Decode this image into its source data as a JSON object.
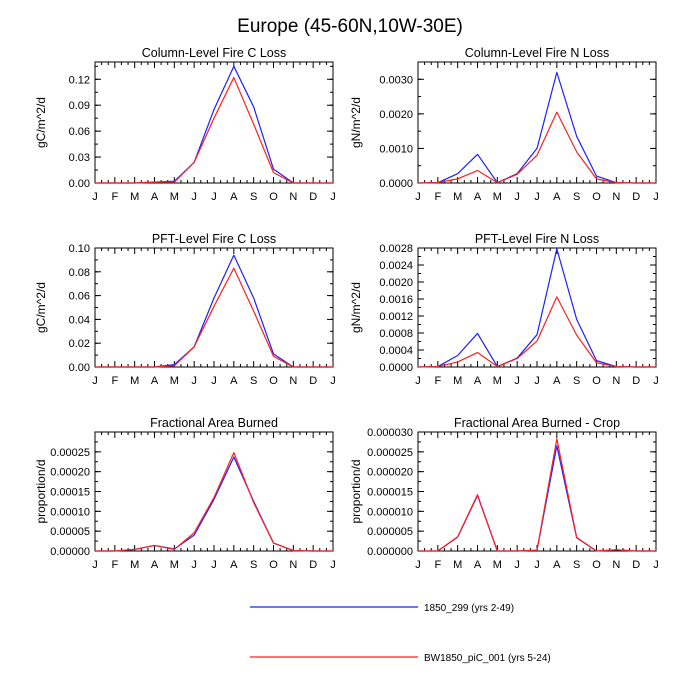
{
  "figure_title": "Europe (45-60N,10W-30E)",
  "colors": {
    "series_1": "#1f1fff",
    "series_2": "#ff1f1f"
  },
  "legend": [
    {
      "label": "1850_299 (yrs 2-49)",
      "color": "#1f1fff"
    },
    {
      "label": "BW1850_piC_001 (yrs 5-24)",
      "color": "#ff1f1f"
    }
  ],
  "chart_data": [
    {
      "type": "line",
      "title": "Column-Level Fire C Loss",
      "ylabel": "gC/m^2/d",
      "xlabel": "",
      "categories": [
        "J",
        "F",
        "M",
        "A",
        "M",
        "J",
        "J",
        "A",
        "S",
        "O",
        "N",
        "D",
        "J"
      ],
      "ylim": [
        0,
        0.14
      ],
      "yticks": [
        0,
        0.03,
        0.06,
        0.09,
        0.12
      ],
      "ytick_labels": [
        "0.00",
        "0.03",
        "0.06",
        "0.09",
        "0.12"
      ],
      "series": [
        {
          "name": "1850_299 (yrs 2-49)",
          "values": [
            0,
            0,
            0,
            0.001,
            0.002,
            0.024,
            0.085,
            0.135,
            0.088,
            0.016,
            0,
            0,
            0
          ]
        },
        {
          "name": "BW1850_piC_001 (yrs 5-24)",
          "values": [
            0,
            0,
            0,
            0.001,
            0.001,
            0.024,
            0.075,
            0.122,
            0.068,
            0.012,
            0,
            0,
            0
          ]
        }
      ]
    },
    {
      "type": "line",
      "title": "Column-Level Fire N Loss",
      "ylabel": "gN/m^2/d",
      "xlabel": "",
      "categories": [
        "J",
        "F",
        "M",
        "A",
        "M",
        "J",
        "J",
        "A",
        "S",
        "O",
        "N",
        "D",
        "J"
      ],
      "ylim": [
        0,
        0.0035
      ],
      "yticks": [
        0,
        0.001,
        0.002,
        0.003
      ],
      "ytick_labels": [
        "0.0000",
        "0.0010",
        "0.0020",
        "0.0030"
      ],
      "series": [
        {
          "name": "1850_299 (yrs 2-49)",
          "values": [
            0,
            1e-05,
            0.00027,
            0.00083,
            1e-05,
            0.00027,
            0.001,
            0.0032,
            0.00135,
            0.0002,
            1e-05,
            0,
            0
          ]
        },
        {
          "name": "BW1850_piC_001 (yrs 5-24)",
          "values": [
            0,
            1e-05,
            0.00012,
            0.00036,
            1e-05,
            0.00025,
            0.0008,
            0.00205,
            0.0009,
            0.00012,
            1e-05,
            0,
            0
          ]
        }
      ]
    },
    {
      "type": "line",
      "title": "PFT-Level Fire C Loss",
      "ylabel": "gC/m^2/d",
      "xlabel": "",
      "categories": [
        "J",
        "F",
        "M",
        "A",
        "M",
        "J",
        "J",
        "A",
        "S",
        "O",
        "N",
        "D",
        "J"
      ],
      "ylim": [
        0,
        0.1
      ],
      "yticks": [
        0,
        0.02,
        0.04,
        0.06,
        0.08,
        0.1
      ],
      "ytick_labels": [
        "0.00",
        "0.02",
        "0.04",
        "0.06",
        "0.08",
        "0.10"
      ],
      "series": [
        {
          "name": "1850_299 (yrs 2-49)",
          "values": [
            0,
            0,
            0,
            0,
            0.002,
            0.017,
            0.058,
            0.094,
            0.058,
            0.011,
            0,
            0,
            0
          ]
        },
        {
          "name": "BW1850_piC_001 (yrs 5-24)",
          "values": [
            0,
            0,
            0,
            0,
            0.001,
            0.017,
            0.051,
            0.083,
            0.047,
            0.009,
            0,
            0,
            0
          ]
        }
      ]
    },
    {
      "type": "line",
      "title": "PFT-Level Fire N Loss",
      "ylabel": "gN/m^2/d",
      "xlabel": "",
      "categories": [
        "J",
        "F",
        "M",
        "A",
        "M",
        "J",
        "J",
        "A",
        "S",
        "O",
        "N",
        "D",
        "J"
      ],
      "ylim": [
        0,
        0.0028
      ],
      "yticks": [
        0,
        0.0004,
        0.0008,
        0.0012,
        0.0016,
        0.002,
        0.0024,
        0.0028
      ],
      "ytick_labels": [
        "0.0000",
        "0.0004",
        "0.0008",
        "0.0012",
        "0.0016",
        "0.0020",
        "0.0024",
        "0.0028"
      ],
      "series": [
        {
          "name": "1850_299 (yrs 2-49)",
          "values": [
            0,
            1e-05,
            0.00027,
            0.00079,
            1e-05,
            0.00021,
            0.00076,
            0.00278,
            0.00112,
            0.00015,
            1e-05,
            0,
            0
          ]
        },
        {
          "name": "BW1850_piC_001 (yrs 5-24)",
          "values": [
            0,
            1e-05,
            0.00012,
            0.00034,
            1e-05,
            0.0002,
            0.00061,
            0.00165,
            0.00075,
            0.0001,
            1e-05,
            0,
            0
          ]
        }
      ]
    },
    {
      "type": "line",
      "title": "Fractional Area Burned",
      "ylabel": "proportion/d",
      "xlabel": "",
      "categories": [
        "J",
        "F",
        "M",
        "A",
        "M",
        "J",
        "J",
        "A",
        "S",
        "O",
        "N",
        "D",
        "J"
      ],
      "ylim": [
        0,
        0.0003
      ],
      "yticks": [
        0,
        5e-05,
        0.0001,
        0.00015,
        0.0002,
        0.00025
      ],
      "ytick_labels": [
        "0.00000",
        "0.00005",
        "0.00010",
        "0.00015",
        "0.00020",
        "0.00025"
      ],
      "series": [
        {
          "name": "1850_299 (yrs 2-49)",
          "values": [
            0,
            0,
            4e-06,
            1.4e-05,
            5e-06,
            4e-05,
            0.00013,
            0.000237,
            0.000125,
            2e-05,
            1e-06,
            0,
            0
          ]
        },
        {
          "name": "BW1850_piC_001 (yrs 5-24)",
          "values": [
            0,
            0,
            4e-06,
            1.4e-05,
            4e-06,
            4.6e-05,
            0.000135,
            0.000248,
            0.000122,
            2e-05,
            1e-06,
            0,
            0
          ]
        }
      ]
    },
    {
      "type": "line",
      "title": "Fractional Area Burned - Crop",
      "ylabel": "proportion/d",
      "xlabel": "",
      "categories": [
        "J",
        "F",
        "M",
        "A",
        "M",
        "J",
        "J",
        "A",
        "S",
        "O",
        "N",
        "D",
        "J"
      ],
      "ylim": [
        0,
        3e-05
      ],
      "yticks": [
        0,
        5e-06,
        1e-05,
        1.5e-05,
        2e-05,
        2.5e-05,
        3e-05
      ],
      "ytick_labels": [
        "0.000000",
        "0.000005",
        "0.000010",
        "0.000015",
        "0.000020",
        "0.000025",
        "0.000030"
      ],
      "series": [
        {
          "name": "1850_299 (yrs 2-49)",
          "values": [
            0,
            0,
            3.5e-06,
            1.4e-05,
            0,
            0,
            2e-07,
            2.65e-05,
            3.3e-06,
            0,
            3e-07,
            0,
            0
          ]
        },
        {
          "name": "BW1850_piC_001 (yrs 5-24)",
          "values": [
            0,
            0,
            3.6e-06,
            1.42e-05,
            0,
            0,
            2e-07,
            2.83e-05,
            3.4e-06,
            0,
            3e-07,
            0,
            0
          ]
        }
      ]
    }
  ]
}
